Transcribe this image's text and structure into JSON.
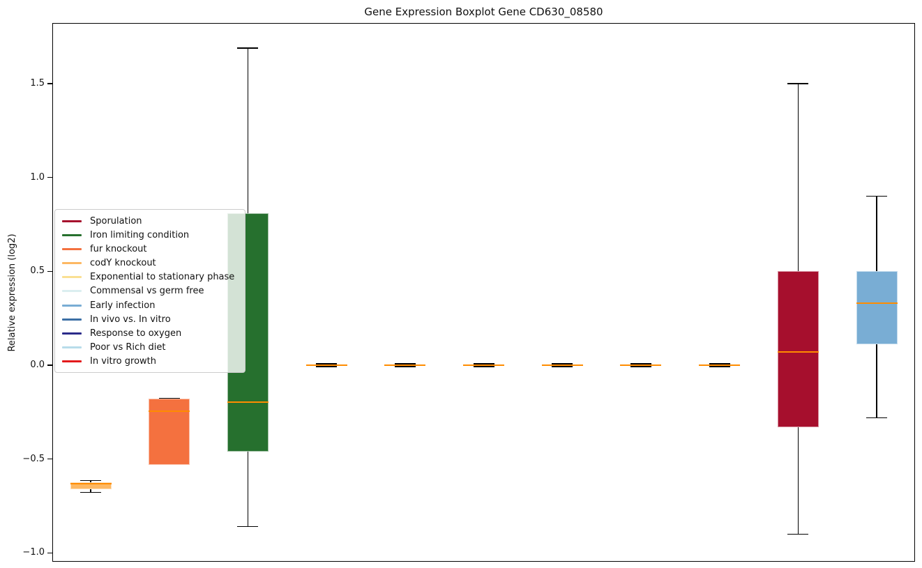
{
  "title": "Gene Expression Boxplot Gene CD630_08580",
  "y_axis": {
    "label": "Relative expression (log2)",
    "tick_labels": [
      "1.5",
      "1.0",
      "0.5",
      "0.0",
      "−0.5",
      "−1.0"
    ],
    "tick_values": [
      1.5,
      1.0,
      0.5,
      0.0,
      -0.5,
      -1.0
    ]
  },
  "legend": {
    "items": [
      {
        "label": "Sporulation",
        "color": "#a60f2d"
      },
      {
        "label": "Iron limiting condition",
        "color": "#26702e"
      },
      {
        "label": "fur knockout",
        "color": "#f4713f"
      },
      {
        "label": "codY knockout",
        "color": "#fdb863"
      },
      {
        "label": "Exponential to stationary phase",
        "color": "#fae093"
      },
      {
        "label": "Commensal vs germ free",
        "color": "#dbeef0"
      },
      {
        "label": "Early infection",
        "color": "#79add4"
      },
      {
        "label": "In vivo vs. In vitro",
        "color": "#3c6fa5"
      },
      {
        "label": "Response to oxygen",
        "color": "#2b2b8a"
      },
      {
        "label": "Poor vs Rich diet",
        "color": "#b8dcea"
      },
      {
        "label": "In vitro growth",
        "color": "#e31a1c"
      }
    ]
  },
  "chart_data": {
    "type": "boxplot",
    "title": "Gene Expression Boxplot Gene CD630_08580",
    "xlabel": "",
    "ylabel": "Relative expression (log2)",
    "ylim": [
      -1.05,
      1.82
    ],
    "yticks": [
      1.5,
      1.0,
      0.5,
      0.0,
      -0.5,
      -1.0
    ],
    "grid": false,
    "legend_position": "center left",
    "median_color": "#ff8c00",
    "whisker_color": "#000000",
    "series": [
      {
        "name": "codY knockout",
        "color": "#fdb863",
        "whisker_low": -0.678,
        "q1": -0.66,
        "median": -0.63,
        "q3": -0.625,
        "whisker_high": -0.615
      },
      {
        "name": "fur knockout",
        "color": "#f4713f",
        "whisker_low": -0.53,
        "q1": -0.53,
        "median": -0.245,
        "q3": -0.177,
        "whisker_high": -0.177
      },
      {
        "name": "Iron limiting condition",
        "color": "#26702e",
        "whisker_low": -0.86,
        "q1": -0.46,
        "median": -0.196,
        "q3": 0.81,
        "whisker_high": 1.69
      },
      {
        "name": "Exponential to stationary phase",
        "color": "#fae093",
        "whisker_low": -0.008,
        "q1": -0.004,
        "median": 0.0,
        "q3": 0.004,
        "whisker_high": 0.008
      },
      {
        "name": "Commensal vs germ free",
        "color": "#dbeef0",
        "whisker_low": -0.008,
        "q1": -0.004,
        "median": 0.0,
        "q3": 0.004,
        "whisker_high": 0.008
      },
      {
        "name": "In vivo vs. In vitro",
        "color": "#3c6fa5",
        "whisker_low": -0.008,
        "q1": -0.004,
        "median": 0.0,
        "q3": 0.004,
        "whisker_high": 0.008
      },
      {
        "name": "Response to oxygen",
        "color": "#2b2b8a",
        "whisker_low": -0.008,
        "q1": -0.004,
        "median": 0.0,
        "q3": 0.004,
        "whisker_high": 0.008
      },
      {
        "name": "Poor vs Rich diet",
        "color": "#b8dcea",
        "whisker_low": -0.008,
        "q1": -0.004,
        "median": 0.0,
        "q3": 0.004,
        "whisker_high": 0.008
      },
      {
        "name": "In vitro growth",
        "color": "#e31a1c",
        "whisker_low": -0.008,
        "q1": -0.004,
        "median": 0.0,
        "q3": 0.004,
        "whisker_high": 0.008
      },
      {
        "name": "Sporulation",
        "color": "#a60f2d",
        "whisker_low": -0.9,
        "q1": -0.33,
        "median": 0.07,
        "q3": 0.5,
        "whisker_high": 1.5
      },
      {
        "name": "Early infection",
        "color": "#79add4",
        "whisker_low": -0.28,
        "q1": 0.11,
        "median": 0.33,
        "q3": 0.5,
        "whisker_high": 0.9
      }
    ]
  }
}
